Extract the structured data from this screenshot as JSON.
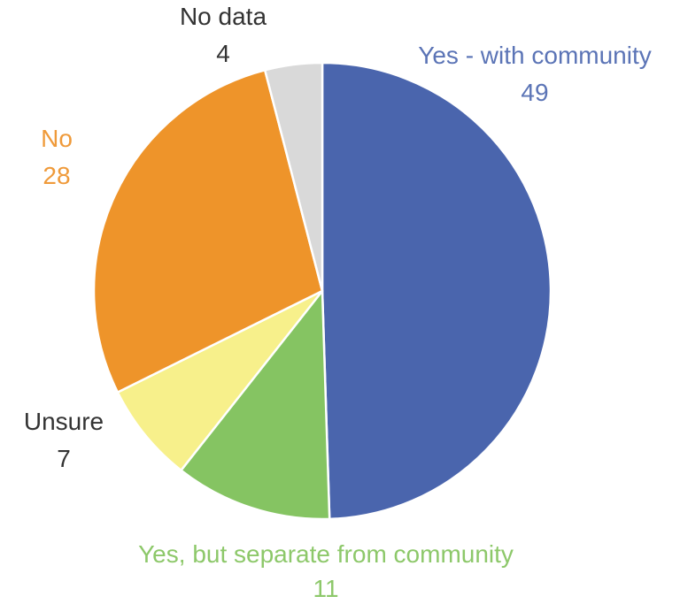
{
  "chart_data": {
    "type": "pie",
    "title": "",
    "start_angle_deg": 0,
    "direction": "clockwise",
    "slices": [
      {
        "label": "Yes - with community",
        "value": 49,
        "color": "#4a65ad",
        "label_color": "#5b74b6"
      },
      {
        "label": "Yes, but separate from community",
        "value": 11,
        "color": "#85c462",
        "label_color": "#8dc86a"
      },
      {
        "label": "Unsure",
        "value": 7,
        "color": "#f7f08b",
        "label_color": "#333333"
      },
      {
        "label": "No",
        "value": 28,
        "color": "#ee942a",
        "label_color": "#ef9a3a"
      },
      {
        "label": "No data",
        "value": 4,
        "color": "#d9d9d9",
        "label_color": "#333333"
      }
    ]
  }
}
